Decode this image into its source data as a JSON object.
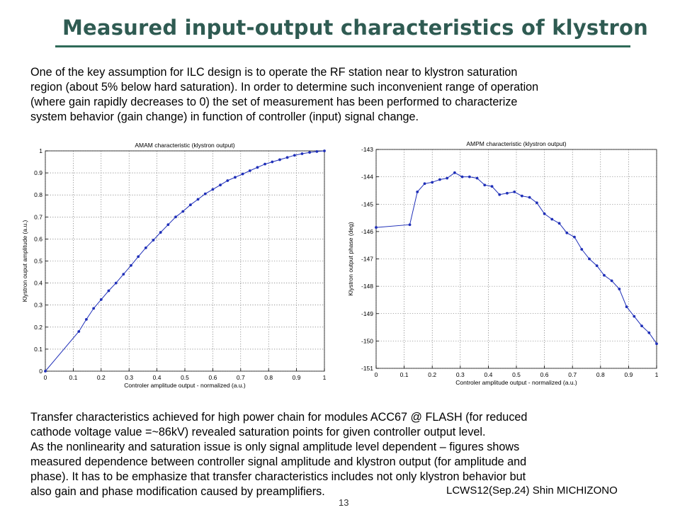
{
  "page": {
    "title": "Measured input-output characteristics of klystron",
    "intro": [
      "One of the key assumption for ILC design is to operate the RF station near to klystron saturation",
      "region (about 5% below hard saturation). In order to determine such inconvenient range of operation",
      "(where gain rapidly decreases to 0) the set of measurement has been performed to characterize",
      "system behavior (gain change) in function of controller (input) signal change."
    ],
    "body": [
      "Transfer characteristics achieved for high power chain for modules ACC67 @ FLASH (for reduced",
      "cathode voltage value =~86kV) revealed saturation points for given controller output level.",
      "As the nonlinearity and saturation issue is only signal amplitude level dependent – figures shows",
      "measured dependence between controller signal amplitude and klystron output (for amplitude and",
      "phase). It has to be emphasize that transfer characteristics includes not only klystron behavior but",
      "also gain and phase modification caused by preamplifiers."
    ],
    "footer": "LCWS12(Sep.24) Shin MICHIZONO",
    "page_number": "13"
  },
  "chart_data": [
    {
      "type": "line",
      "title": "AMAM characteristic (klystron output)",
      "xlabel": "Controler amplitude output - normalized (a.u.)",
      "ylabel": "Klystron ouput amplitude (a.u.)",
      "xlim": [
        0,
        1
      ],
      "ylim": [
        0,
        1
      ],
      "xticks": [
        "0",
        "0.1",
        "0.2",
        "0.3",
        "0.4",
        "0.5",
        "0.6",
        "0.7",
        "0.8",
        "0.9",
        "1"
      ],
      "yticks": [
        "0",
        "0.1",
        "0.2",
        "0.3",
        "0.4",
        "0.5",
        "0.6",
        "0.7",
        "0.8",
        "0.9",
        "1"
      ],
      "grid": true,
      "color": "#1f2fb8",
      "x": [
        0,
        0.12,
        0.147,
        0.173,
        0.2,
        0.227,
        0.253,
        0.28,
        0.307,
        0.333,
        0.36,
        0.387,
        0.413,
        0.44,
        0.467,
        0.493,
        0.52,
        0.547,
        0.573,
        0.6,
        0.627,
        0.653,
        0.68,
        0.707,
        0.733,
        0.76,
        0.787,
        0.813,
        0.84,
        0.867,
        0.893,
        0.92,
        0.947,
        0.973,
        1.0
      ],
      "y": [
        0,
        0.18,
        0.235,
        0.285,
        0.325,
        0.365,
        0.4,
        0.44,
        0.48,
        0.52,
        0.56,
        0.595,
        0.63,
        0.665,
        0.7,
        0.725,
        0.755,
        0.78,
        0.805,
        0.825,
        0.845,
        0.865,
        0.88,
        0.895,
        0.91,
        0.925,
        0.94,
        0.95,
        0.96,
        0.97,
        0.98,
        0.987,
        0.993,
        0.997,
        1.0
      ]
    },
    {
      "type": "line",
      "title": "AMPM characteristic (klystron output)",
      "xlabel": "Controler amplitude output - normalized (a.u.)",
      "ylabel": "Klystron output phase (deg)",
      "xlim": [
        0,
        1
      ],
      "ylim": [
        -151,
        -143
      ],
      "xticks": [
        "0",
        "0.1",
        "0.2",
        "0.3",
        "0.4",
        "0.5",
        "0.6",
        "0.7",
        "0.8",
        "0.9",
        "1"
      ],
      "yticks": [
        "-151",
        "-150",
        "-149",
        "-148",
        "-147",
        "-146",
        "-145",
        "-144",
        "-143"
      ],
      "grid": true,
      "color": "#1f2fb8",
      "x": [
        0,
        0.12,
        0.147,
        0.173,
        0.2,
        0.227,
        0.253,
        0.28,
        0.307,
        0.333,
        0.36,
        0.387,
        0.413,
        0.44,
        0.467,
        0.493,
        0.52,
        0.547,
        0.573,
        0.6,
        0.627,
        0.653,
        0.68,
        0.707,
        0.733,
        0.76,
        0.787,
        0.813,
        0.84,
        0.867,
        0.893,
        0.92,
        0.947,
        0.973,
        1.0
      ],
      "y": [
        -145.85,
        -145.75,
        -144.55,
        -144.25,
        -144.2,
        -144.1,
        -144.05,
        -143.85,
        -144.0,
        -144.0,
        -144.05,
        -144.3,
        -144.35,
        -144.65,
        -144.6,
        -144.55,
        -144.7,
        -144.75,
        -144.95,
        -145.35,
        -145.55,
        -145.7,
        -146.05,
        -146.2,
        -146.65,
        -147.0,
        -147.25,
        -147.6,
        -147.8,
        -148.1,
        -148.75,
        -149.1,
        -149.45,
        -149.7,
        -150.1
      ]
    }
  ]
}
